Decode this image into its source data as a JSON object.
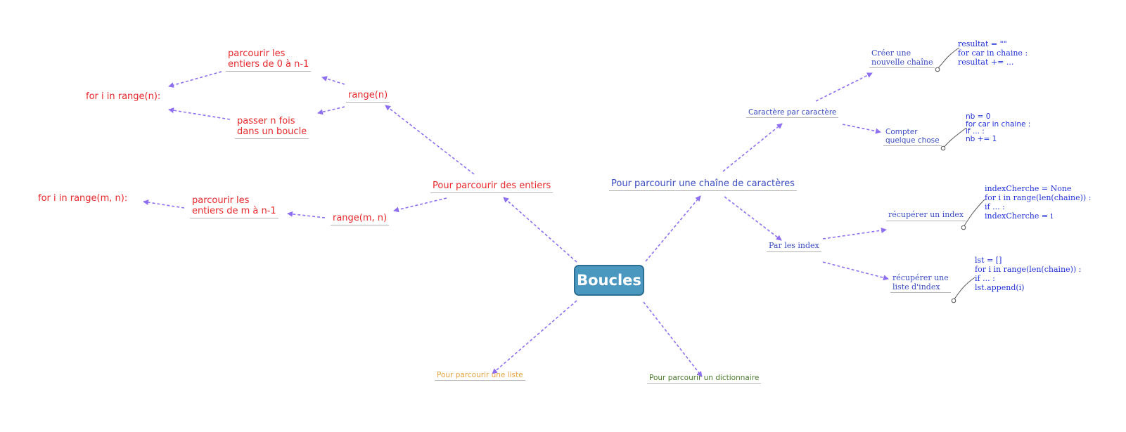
{
  "center": "Boucles",
  "branches": {
    "entiers": {
      "label": "Pour parcourir des entiers",
      "range_n": "range(n)",
      "range_n_a": [
        "parcourir les",
        "entiers de 0 à n-1"
      ],
      "range_n_b": [
        "passer n fois",
        "dans un boucle"
      ],
      "range_n_for": "for i in range(n):",
      "range_mn": "range(m, n)",
      "range_mn_a": [
        "parcourir les",
        "entiers de m à n-1"
      ],
      "range_mn_for": "for i in range(m, n):"
    },
    "chaine": {
      "label": "Pour parcourir une chaîne de caractères",
      "car": "Caractère par caractère",
      "nouvelle": [
        "Créer une",
        "nouvelle chaîne"
      ],
      "nouvelle_code": [
        "resultat = \"\"",
        "for car in chaine :",
        "resultat += ..."
      ],
      "compter": [
        "Compter",
        "quelque chose"
      ],
      "compter_code": [
        "nb = 0",
        "for car in chaine :",
        "if ... :",
        "nb += 1"
      ],
      "index": "Par les index",
      "recup_index": "récupérer un index",
      "recup_index_code": [
        "indexCherche = None",
        "for i in range(len(chaine)) :",
        "if ... :",
        "indexCherche = i"
      ],
      "recup_liste": [
        "récupérer une",
        "liste d'index"
      ],
      "recup_liste_code": [
        "lst = []",
        "for i in range(len(chaine)) :",
        "if ... :",
        "lst.append(i)"
      ]
    },
    "liste": {
      "label": "Pour parcourir une liste"
    },
    "dictionnaire": {
      "label": "Pour parcourir un dictionnaire"
    }
  },
  "colors": {
    "red": "#e8272b",
    "blue": "#3a4cc2",
    "code_blue": "#2130d8",
    "orange": "#e8a23c",
    "green": "#4a7a2e",
    "arrow": "#8e6ff0",
    "center_fill": "#4a98c0"
  }
}
